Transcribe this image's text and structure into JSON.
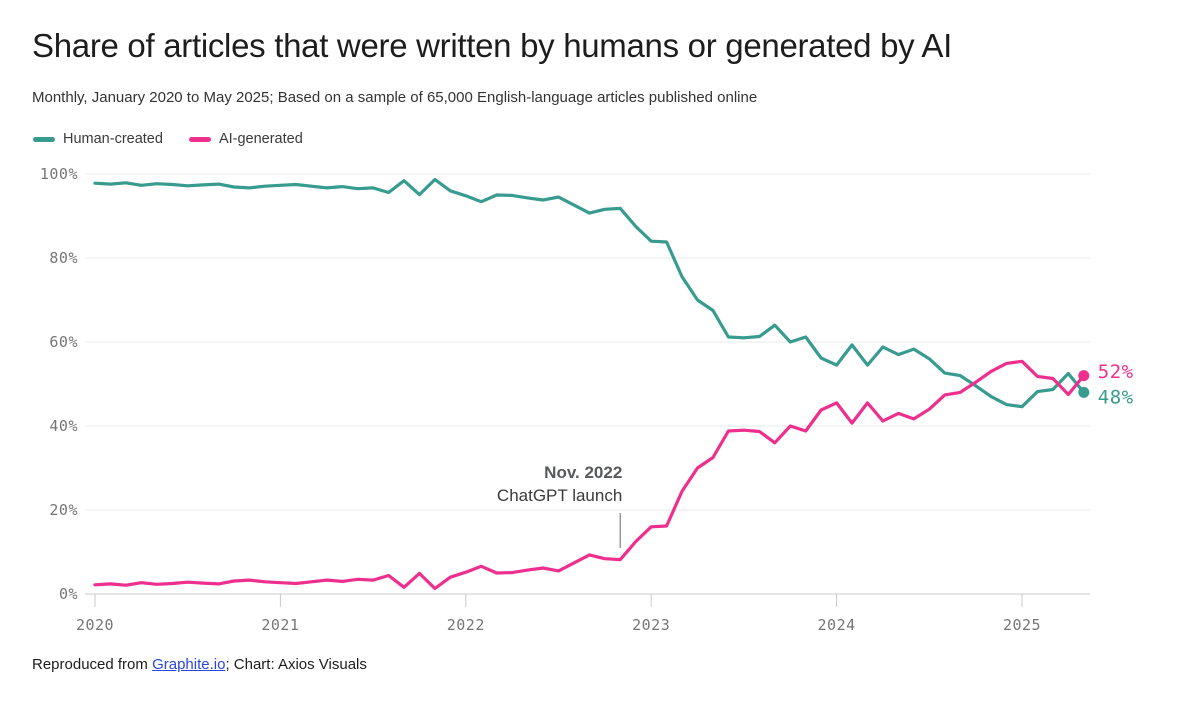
{
  "header": {
    "title": "Share of articles that were written by humans or generated by AI",
    "subtitle": "Monthly, January 2020 to May 2025; Based on a sample of 65,000 English-language articles published online"
  },
  "legend": {
    "items": [
      {
        "label": "Human-created",
        "color": "#379b8f"
      },
      {
        "label": "AI-generated",
        "color": "#ee2f8e"
      }
    ]
  },
  "footer": {
    "prefix": "Reproduced from ",
    "link_text": "Graphite.io",
    "suffix": "; Chart: Axios Visuals",
    "link_color": "#2a46e0"
  },
  "chart_data": {
    "type": "line",
    "x": [
      "2020-01",
      "2020-02",
      "2020-03",
      "2020-04",
      "2020-05",
      "2020-06",
      "2020-07",
      "2020-08",
      "2020-09",
      "2020-10",
      "2020-11",
      "2020-12",
      "2021-01",
      "2021-02",
      "2021-03",
      "2021-04",
      "2021-05",
      "2021-06",
      "2021-07",
      "2021-08",
      "2021-09",
      "2021-10",
      "2021-11",
      "2021-12",
      "2022-01",
      "2022-02",
      "2022-03",
      "2022-04",
      "2022-05",
      "2022-06",
      "2022-07",
      "2022-08",
      "2022-09",
      "2022-10",
      "2022-11",
      "2022-12",
      "2023-01",
      "2023-02",
      "2023-03",
      "2023-04",
      "2023-05",
      "2023-06",
      "2023-07",
      "2023-08",
      "2023-09",
      "2023-10",
      "2023-11",
      "2023-12",
      "2024-01",
      "2024-02",
      "2024-03",
      "2024-04",
      "2024-05",
      "2024-06",
      "2024-07",
      "2024-08",
      "2024-09",
      "2024-10",
      "2024-11",
      "2024-12",
      "2025-01",
      "2025-02",
      "2025-03",
      "2025-04",
      "2025-05"
    ],
    "series": [
      {
        "name": "Human-created",
        "color": "#379b8f",
        "end_label": "48%",
        "values": [
          97.8,
          97.6,
          97.9,
          97.3,
          97.7,
          97.5,
          97.2,
          97.4,
          97.6,
          96.9,
          96.7,
          97.1,
          97.3,
          97.5,
          97.1,
          96.7,
          97.0,
          96.5,
          96.7,
          95.6,
          98.4,
          95.1,
          98.7,
          96.0,
          94.8,
          93.4,
          95.0,
          94.9,
          94.3,
          93.8,
          94.5,
          92.6,
          90.7,
          91.6,
          91.8,
          87.5,
          84.0,
          83.8,
          75.5,
          70.0,
          67.5,
          61.2,
          61.0,
          61.3,
          64.0,
          60.0,
          61.2,
          56.2,
          54.5,
          59.3,
          54.5,
          58.8,
          57.0,
          58.3,
          56.0,
          52.6,
          52.0,
          49.6,
          47.0,
          45.1,
          44.6,
          48.2,
          48.7,
          52.5,
          48.0
        ]
      },
      {
        "name": "AI-generated",
        "color": "#ee2f8e",
        "end_label": "52%",
        "values": [
          2.2,
          2.4,
          2.1,
          2.7,
          2.3,
          2.5,
          2.8,
          2.6,
          2.4,
          3.1,
          3.3,
          2.9,
          2.7,
          2.5,
          2.9,
          3.3,
          3.0,
          3.5,
          3.3,
          4.4,
          1.6,
          4.9,
          1.3,
          4.0,
          5.2,
          6.6,
          5.0,
          5.1,
          5.7,
          6.2,
          5.5,
          7.4,
          9.3,
          8.4,
          8.2,
          12.5,
          16.0,
          16.2,
          24.5,
          30.0,
          32.5,
          38.8,
          39.0,
          38.7,
          36.0,
          40.0,
          38.8,
          43.8,
          45.5,
          40.7,
          45.5,
          41.2,
          43.0,
          41.7,
          44.0,
          47.4,
          48.0,
          50.4,
          53.0,
          54.9,
          55.4,
          51.8,
          51.3,
          47.5,
          52.0
        ]
      }
    ],
    "title": "Share of articles that were written by humans or generated by AI",
    "xlabel": "",
    "ylabel": "",
    "ylim": [
      0,
      100
    ],
    "yticks": [
      0,
      20,
      40,
      60,
      80,
      100
    ],
    "ytick_suffix": "%",
    "xticks": [
      "2020",
      "2021",
      "2022",
      "2023",
      "2024",
      "2025"
    ],
    "grid": "horizontal",
    "legend_position": "top-left",
    "annotation": {
      "line1": "Nov. 2022",
      "line2": "ChatGPT launch",
      "x_month": "2022-11"
    }
  }
}
